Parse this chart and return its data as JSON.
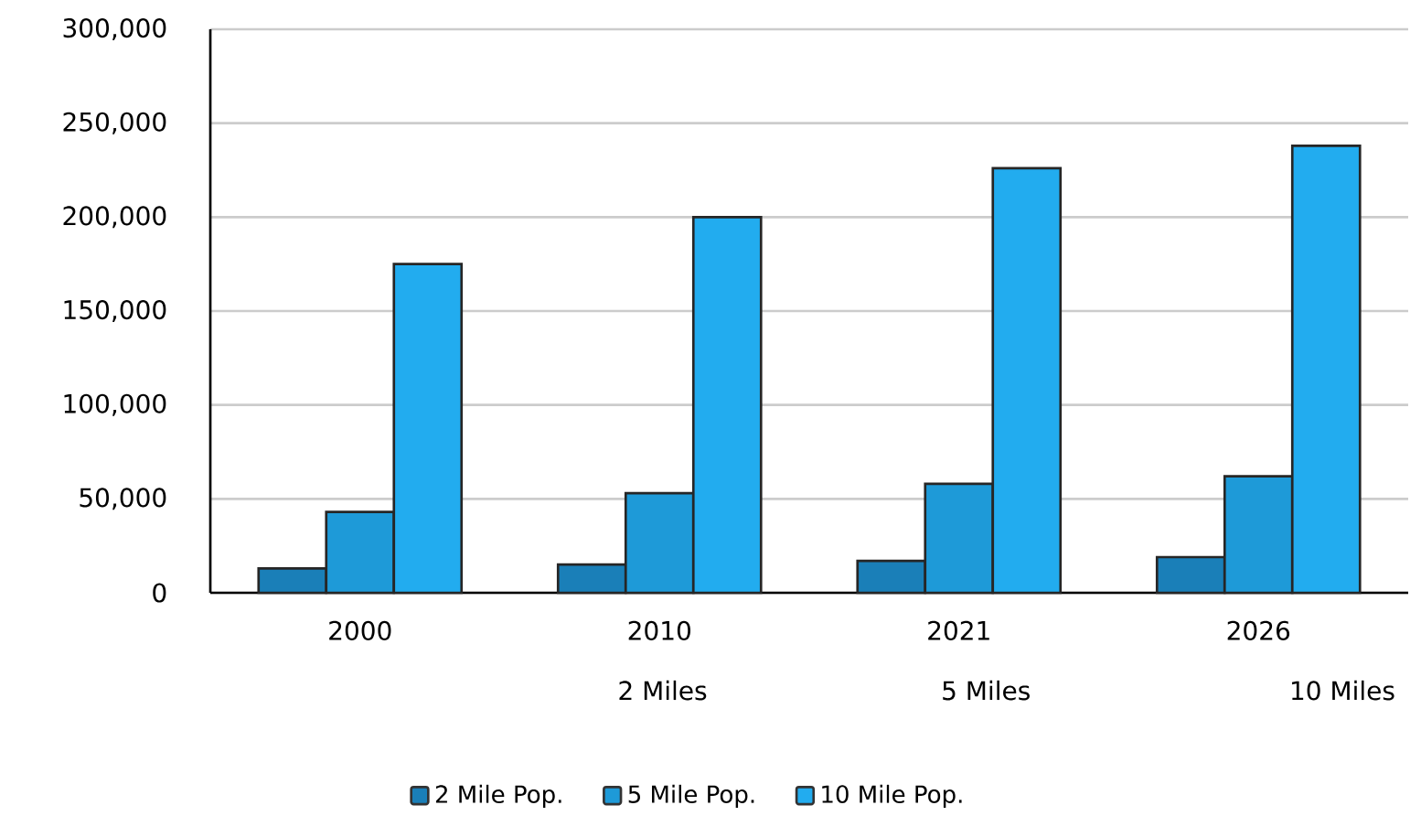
{
  "chart_data": {
    "type": "bar",
    "categories": [
      "2000",
      "2010",
      "2021",
      "2026"
    ],
    "series": [
      {
        "name": "2 Mile Pop.",
        "color": "#1a7fb8",
        "values": [
          13000,
          15000,
          17000,
          19000
        ]
      },
      {
        "name": "5 Mile Pop.",
        "color": "#1e9ad8",
        "values": [
          43000,
          53000,
          58000,
          62000
        ]
      },
      {
        "name": "10 Mile Pop.",
        "color": "#22acef",
        "values": [
          175000,
          200000,
          226000,
          238000
        ]
      }
    ],
    "ylim": [
      0,
      300000
    ],
    "yticks": [
      0,
      {
        "value": 50000,
        "label": "50,000"
      },
      {
        "value": 100000,
        "label": "100,000"
      },
      {
        "value": 150000,
        "label": "150,000"
      },
      {
        "value": 200000,
        "label": "200,000"
      },
      {
        "value": 250000,
        "label": "250,000"
      },
      {
        "value": 300000,
        "label": "300,000"
      }
    ],
    "grid": "y",
    "legend": "bottom",
    "annotations": [
      "2 Miles",
      "5 Miles",
      "10 Miles"
    ]
  }
}
